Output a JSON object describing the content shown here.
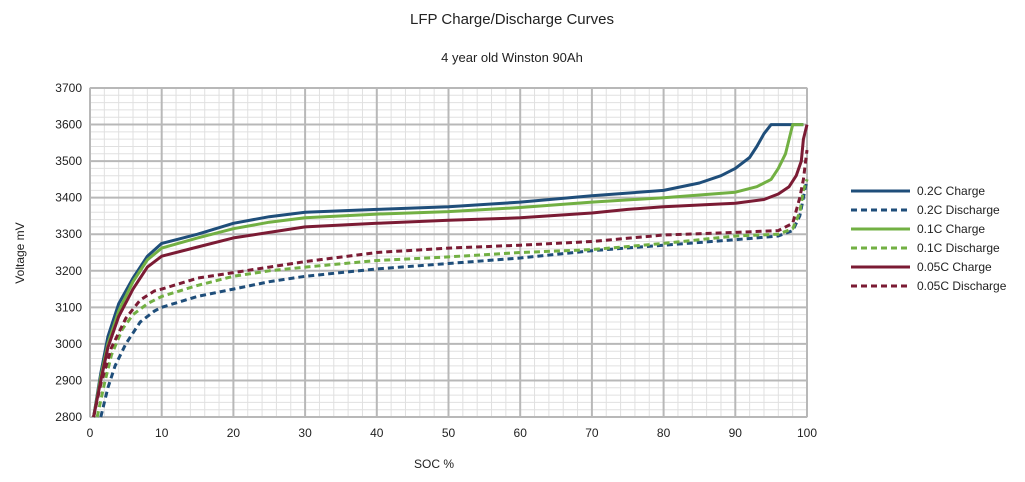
{
  "chart_data": {
    "type": "line",
    "title": "LFP Charge/Discharge Curves",
    "subtitle": "4 year old Winston 90Ah",
    "xlabel": "SOC %",
    "ylabel": "Voltage mV",
    "xlim": [
      0,
      100
    ],
    "ylim": [
      2800,
      3700
    ],
    "xticks": [
      0,
      10,
      20,
      30,
      40,
      50,
      60,
      70,
      80,
      90,
      100
    ],
    "yticks": [
      2800,
      2900,
      3000,
      3100,
      3200,
      3300,
      3400,
      3500,
      3600,
      3700
    ],
    "grid": true,
    "legend_position": "right",
    "series": [
      {
        "name": "0.2C Charge",
        "color": "#1f4e7a",
        "dash": "solid",
        "x": [
          0.5,
          1.5,
          2.5,
          4,
          6,
          8,
          10,
          15,
          20,
          25,
          30,
          40,
          50,
          60,
          70,
          80,
          85,
          88,
          90,
          92,
          93,
          94,
          95,
          99.5
        ],
        "y": [
          2800,
          2920,
          3020,
          3110,
          3180,
          3240,
          3275,
          3300,
          3330,
          3348,
          3360,
          3368,
          3375,
          3388,
          3405,
          3420,
          3440,
          3460,
          3480,
          3510,
          3540,
          3575,
          3600,
          3600
        ]
      },
      {
        "name": "0.2C Discharge",
        "color": "#1f4e7a",
        "dash": "dashed",
        "x": [
          1.5,
          2.5,
          3.5,
          5,
          7,
          9,
          10,
          15,
          20,
          25,
          30,
          40,
          50,
          60,
          70,
          80,
          90,
          96,
          98,
          99,
          99.5,
          100
        ],
        "y": [
          2800,
          2880,
          2940,
          3000,
          3060,
          3090,
          3100,
          3130,
          3150,
          3170,
          3185,
          3205,
          3220,
          3235,
          3255,
          3270,
          3285,
          3295,
          3310,
          3350,
          3400,
          3450
        ]
      },
      {
        "name": "0.1C Charge",
        "color": "#72b043",
        "dash": "solid",
        "x": [
          0.5,
          1.5,
          2.5,
          4,
          6,
          8,
          10,
          15,
          20,
          25,
          30,
          40,
          50,
          60,
          70,
          80,
          90,
          93,
          95,
          96,
          97,
          97.5,
          98,
          99.5
        ],
        "y": [
          2800,
          2910,
          3000,
          3090,
          3170,
          3230,
          3262,
          3290,
          3315,
          3333,
          3345,
          3355,
          3362,
          3373,
          3388,
          3400,
          3415,
          3430,
          3450,
          3480,
          3520,
          3560,
          3600,
          3600
        ]
      },
      {
        "name": "0.1C Discharge",
        "color": "#72b043",
        "dash": "dashed",
        "x": [
          1,
          2,
          3,
          4.5,
          6,
          8,
          10,
          15,
          20,
          25,
          30,
          40,
          50,
          60,
          70,
          80,
          90,
          96,
          98,
          99,
          99.5,
          100
        ],
        "y": [
          2800,
          2890,
          2970,
          3040,
          3080,
          3110,
          3130,
          3160,
          3185,
          3200,
          3210,
          3228,
          3238,
          3250,
          3258,
          3275,
          3295,
          3300,
          3315,
          3360,
          3420,
          3450
        ]
      },
      {
        "name": "0.05C Charge",
        "color": "#7b1b34",
        "dash": "solid",
        "x": [
          0.5,
          1.5,
          2.5,
          4,
          6,
          8,
          10,
          15,
          20,
          25,
          30,
          40,
          50,
          60,
          70,
          75,
          80,
          90,
          94,
          96,
          97.5,
          98.5,
          99.2,
          99.5,
          100
        ],
        "y": [
          2800,
          2900,
          2990,
          3075,
          3150,
          3210,
          3240,
          3265,
          3290,
          3305,
          3320,
          3330,
          3338,
          3345,
          3358,
          3368,
          3375,
          3385,
          3395,
          3410,
          3430,
          3460,
          3500,
          3560,
          3600
        ]
      },
      {
        "name": "0.05C Discharge",
        "color": "#7b1b34",
        "dash": "dashed",
        "x": [
          0.5,
          1.5,
          3,
          5,
          7,
          9,
          10,
          15,
          20,
          25,
          30,
          40,
          50,
          60,
          70,
          80,
          90,
          96,
          98,
          99,
          99.5,
          100
        ],
        "y": [
          2800,
          2890,
          2990,
          3070,
          3120,
          3145,
          3150,
          3180,
          3195,
          3210,
          3225,
          3250,
          3262,
          3270,
          3280,
          3298,
          3305,
          3310,
          3330,
          3400,
          3450,
          3530
        ]
      }
    ]
  }
}
